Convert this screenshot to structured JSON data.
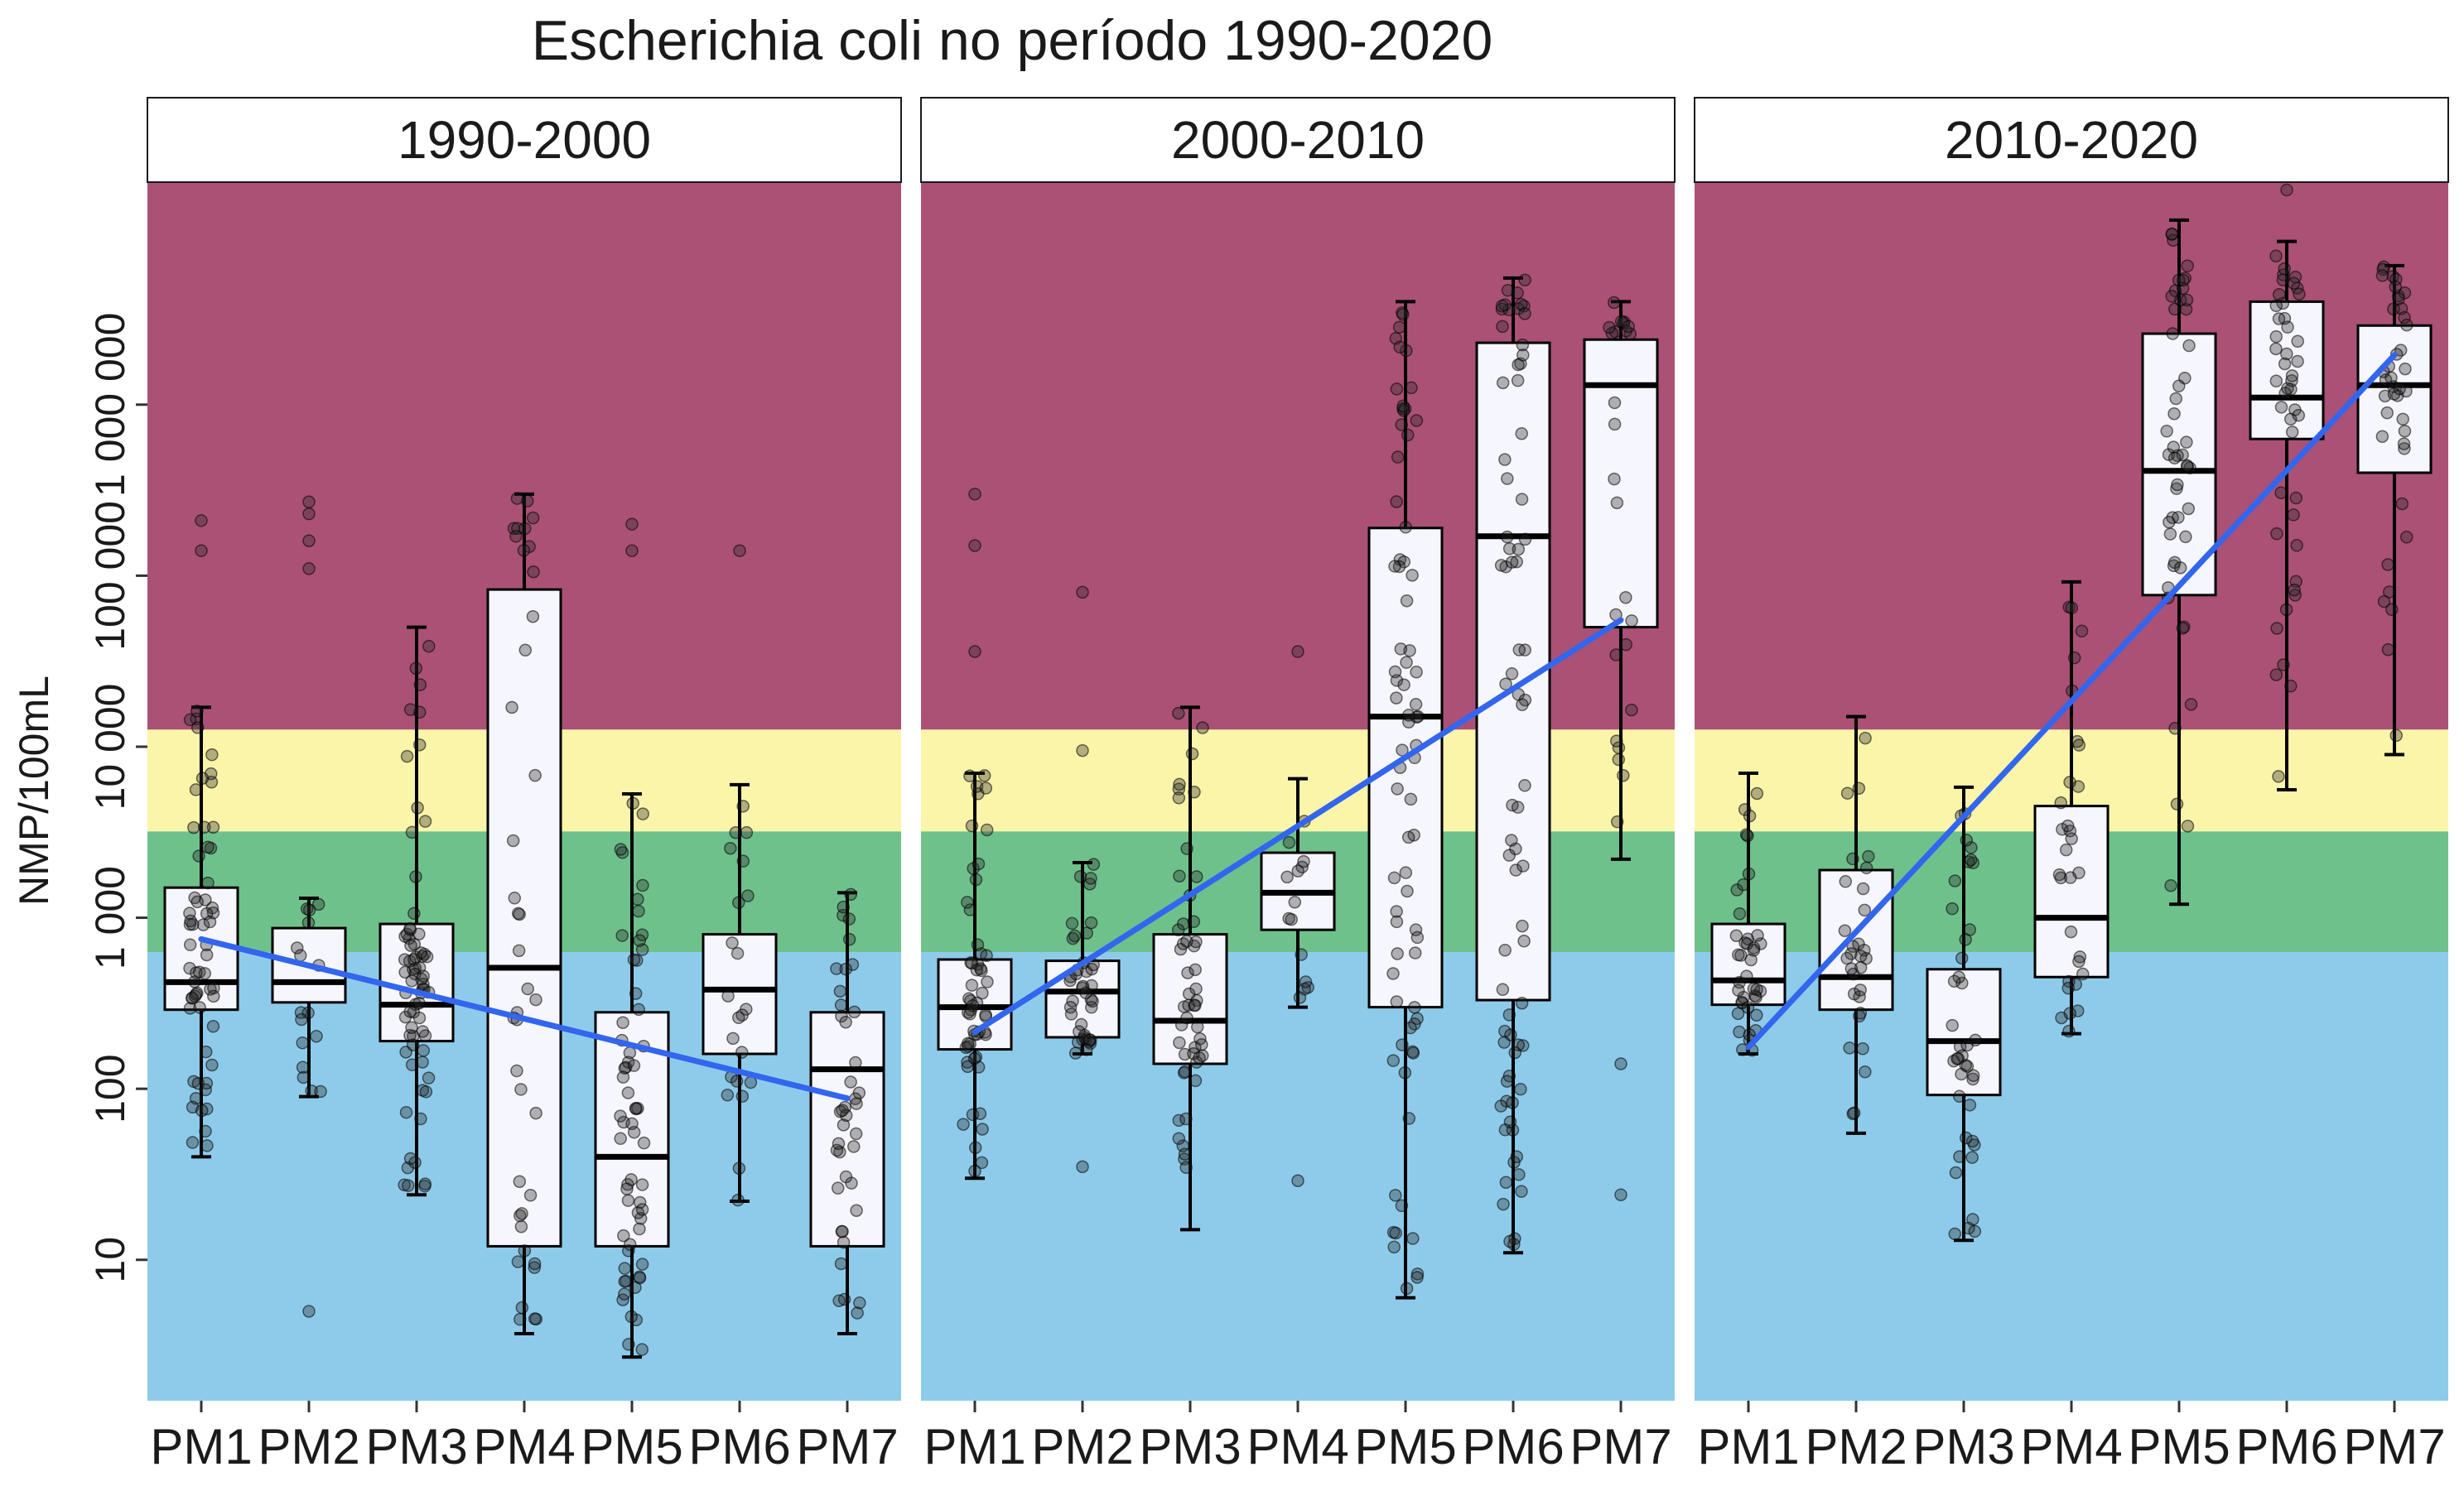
{
  "chart_data": {
    "type": "box",
    "title": "Escherichia coli no período 1990-2020",
    "ylabel": "NMP/100mL",
    "xlabel": "",
    "y_scale": "log10",
    "ylim": [
      1.5,
      20000000
    ],
    "y_ticks": [
      10,
      100,
      1000,
      10000,
      100000,
      1000000
    ],
    "y_tick_labels": [
      "10",
      "100",
      "1 000",
      "10 000",
      "100 000",
      "1 000 000"
    ],
    "categories": [
      "PM1",
      "PM2",
      "PM3",
      "PM4",
      "PM5",
      "PM6",
      "PM7"
    ],
    "quality_bands": [
      {
        "from": 1.5,
        "to": 630,
        "color": "#8ECBEA"
      },
      {
        "from": 630,
        "to": 3200,
        "color": "#6FC18C"
      },
      {
        "from": 3200,
        "to": 12600,
        "color": "#FBF5A9"
      },
      {
        "from": 12600,
        "to": 20000000,
        "color": "#AA5175"
      }
    ],
    "trend_color": "#3366EE",
    "panels": [
      {
        "label": "1990-2000",
        "boxes": [
          {
            "cat": "PM1",
            "low": 40,
            "q1": 290,
            "median": 420,
            "q3": 1500,
            "high": 17000
          },
          {
            "cat": "PM2",
            "low": 90,
            "q1": 320,
            "median": 420,
            "q3": 870,
            "high": 1300
          },
          {
            "cat": "PM3",
            "low": 24,
            "q1": 190,
            "median": 310,
            "q3": 920,
            "high": 50000
          },
          {
            "cat": "PM4",
            "low": 3.7,
            "q1": 12,
            "median": 510,
            "q3": 83000,
            "high": 300000
          },
          {
            "cat": "PM5",
            "low": 2.7,
            "q1": 12,
            "median": 40,
            "q3": 280,
            "high": 5300
          },
          {
            "cat": "PM6",
            "low": 22,
            "q1": 160,
            "median": 380,
            "q3": 800,
            "high": 6000
          },
          {
            "cat": "PM7",
            "low": 3.7,
            "q1": 12,
            "median": 130,
            "q3": 280,
            "high": 1400
          }
        ],
        "outliers": [
          {
            "cat": "PM1",
            "values": [
              210000,
              140000
            ]
          },
          {
            "cat": "PM2",
            "values": [
              5,
              270000,
              230000,
              160000,
              110000
            ]
          },
          {
            "cat": "PM5",
            "values": [
              200000,
              140000
            ]
          },
          {
            "cat": "PM6",
            "values": [
              140000
            ]
          }
        ],
        "trend": [
          750,
          88
        ]
      },
      {
        "label": "2000-2010",
        "boxes": [
          {
            "cat": "PM1",
            "low": 30,
            "q1": 170,
            "median": 300,
            "q3": 570,
            "high": 7000
          },
          {
            "cat": "PM2",
            "low": 160,
            "q1": 200,
            "median": 370,
            "q3": 560,
            "high": 2100
          },
          {
            "cat": "PM3",
            "low": 15,
            "q1": 140,
            "median": 250,
            "q3": 800,
            "high": 17000
          },
          {
            "cat": "PM4",
            "low": 300,
            "q1": 850,
            "median": 1400,
            "q3": 2400,
            "high": 6500
          },
          {
            "cat": "PM5",
            "low": 6,
            "q1": 300,
            "median": 15000,
            "q3": 190000,
            "high": 4000000
          },
          {
            "cat": "PM6",
            "low": 11,
            "q1": 330,
            "median": 170000,
            "q3": 2300000,
            "high": 5500000
          },
          {
            "cat": "PM7",
            "low": 2200,
            "q1": 50000,
            "median": 1300000,
            "q3": 2400000,
            "high": 4000000
          }
        ],
        "outliers": [
          {
            "cat": "PM1",
            "values": [
              300000,
              150000,
              36000
            ]
          },
          {
            "cat": "PM2",
            "values": [
              35,
              9500,
              80000
            ]
          },
          {
            "cat": "PM4",
            "values": [
              29,
              36000
            ]
          },
          {
            "cat": "PM7",
            "values": [
              24,
              140
            ]
          }
        ],
        "trend": [
          215,
          55000
        ]
      },
      {
        "label": "2010-2020",
        "boxes": [
          {
            "cat": "PM1",
            "low": 160,
            "q1": 310,
            "median": 430,
            "q3": 920,
            "high": 7000
          },
          {
            "cat": "PM2",
            "low": 55,
            "q1": 290,
            "median": 450,
            "q3": 1900,
            "high": 15000
          },
          {
            "cat": "PM3",
            "low": 13,
            "q1": 92,
            "median": 190,
            "q3": 500,
            "high": 5800
          },
          {
            "cat": "PM4",
            "low": 210,
            "q1": 450,
            "median": 1000,
            "q3": 4500,
            "high": 92000
          },
          {
            "cat": "PM5",
            "low": 1200,
            "q1": 77000,
            "median": 410000,
            "q3": 2600000,
            "high": 12000000
          },
          {
            "cat": "PM6",
            "low": 5600,
            "q1": 630000,
            "median": 1100000,
            "q3": 4000000,
            "high": 9000000
          },
          {
            "cat": "PM7",
            "low": 9000,
            "q1": 400000,
            "median": 1300000,
            "q3": 2900000,
            "high": 6500000
          }
        ],
        "outliers": [
          {
            "cat": "PM6",
            "values": [
              18000000
            ]
          }
        ],
        "trend": [
          175,
          1950000
        ]
      }
    ],
    "jitter_points": [
      {
        "panel": 0,
        "cat": "PM1",
        "n": 60
      },
      {
        "panel": 0,
        "cat": "PM2",
        "n": 16
      },
      {
        "panel": 0,
        "cat": "PM3",
        "n": 70
      },
      {
        "panel": 0,
        "cat": "PM4",
        "n": 40
      },
      {
        "panel": 0,
        "cat": "PM5",
        "n": 60
      },
      {
        "panel": 0,
        "cat": "PM6",
        "n": 22
      },
      {
        "panel": 0,
        "cat": "PM7",
        "n": 40
      },
      {
        "panel": 1,
        "cat": "PM1",
        "n": 55
      },
      {
        "panel": 1,
        "cat": "PM2",
        "n": 40
      },
      {
        "panel": 1,
        "cat": "PM3",
        "n": 50
      },
      {
        "panel": 1,
        "cat": "PM4",
        "n": 14
      },
      {
        "panel": 1,
        "cat": "PM5",
        "n": 75
      },
      {
        "panel": 1,
        "cat": "PM6",
        "n": 75
      },
      {
        "panel": 1,
        "cat": "PM7",
        "n": 25
      },
      {
        "panel": 2,
        "cat": "PM1",
        "n": 40
      },
      {
        "panel": 2,
        "cat": "PM2",
        "n": 30
      },
      {
        "panel": 2,
        "cat": "PM3",
        "n": 40
      },
      {
        "panel": 2,
        "cat": "PM4",
        "n": 30
      },
      {
        "panel": 2,
        "cat": "PM5",
        "n": 50
      },
      {
        "panel": 2,
        "cat": "PM6",
        "n": 45
      },
      {
        "panel": 2,
        "cat": "PM7",
        "n": 40
      }
    ]
  }
}
